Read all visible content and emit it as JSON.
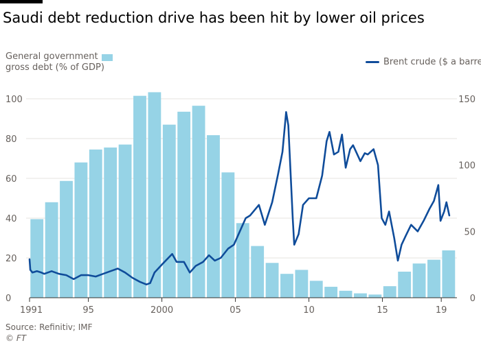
{
  "header": {
    "title": "Saudi debt reduction drive has been hit by lower oil prices"
  },
  "legend": {
    "debt_label_line1": "General government",
    "debt_label_line2": "gross debt (% of GDP)",
    "oil_label": "Brent crude ($ a barrel)"
  },
  "footer": {
    "source": "Source: Refinitiv; IMF",
    "credit": "© FT"
  },
  "colors": {
    "bars": "#96d3e6",
    "line": "#0f4c9a",
    "axis": "#66605c",
    "grid": "#e6e3df"
  },
  "chart_data": {
    "type": "bar+line",
    "title": "Saudi debt reduction drive has been hit by lower oil prices",
    "x_tick_labels": [
      "1991",
      "95",
      "2000",
      "05",
      "10",
      "15",
      "19"
    ],
    "x_tick_years": [
      1991,
      1995,
      2000,
      2005,
      2010,
      2015,
      2019
    ],
    "x_range": [
      1991,
      2019.6
    ],
    "left_axis": {
      "ticks": [
        0,
        20,
        40,
        60,
        80,
        100
      ],
      "ylim": [
        0,
        110
      ]
    },
    "right_axis": {
      "ticks": [
        0,
        50,
        100,
        150
      ],
      "ylim": [
        0,
        165
      ]
    },
    "series": [
      {
        "name": "General government gross debt (% of GDP)",
        "type": "bar",
        "axis": "left",
        "x": [
          1991,
          1992,
          1993,
          1994,
          1995,
          1996,
          1997,
          1998,
          1999,
          2000,
          2001,
          2002,
          2003,
          2004,
          2005,
          2006,
          2007,
          2008,
          2009,
          2010,
          2011,
          2012,
          2013,
          2014,
          2015,
          2016,
          2017,
          2018,
          2019
        ],
        "values": [
          39.5,
          48,
          58.7,
          68,
          74.5,
          75.5,
          77,
          101.5,
          103.3,
          87,
          93.5,
          96.5,
          81.7,
          63,
          37.5,
          26,
          17.5,
          12,
          14,
          8.5,
          5.5,
          3.5,
          2.2,
          1.6,
          5.8,
          13.1,
          17.2,
          19.1,
          23.8
        ]
      },
      {
        "name": "Brent crude ($ a barrel)",
        "type": "line",
        "axis": "right",
        "points": [
          [
            1991.0,
            29
          ],
          [
            1991.05,
            21
          ],
          [
            1991.2,
            19
          ],
          [
            1991.5,
            20
          ],
          [
            1991.8,
            19
          ],
          [
            1992.0,
            18
          ],
          [
            1992.5,
            20
          ],
          [
            1993.0,
            18
          ],
          [
            1993.5,
            17
          ],
          [
            1994.0,
            14
          ],
          [
            1994.5,
            17
          ],
          [
            1995.0,
            17
          ],
          [
            1995.5,
            16
          ],
          [
            1996.0,
            18
          ],
          [
            1996.5,
            20
          ],
          [
            1997.0,
            22
          ],
          [
            1997.5,
            19
          ],
          [
            1998.0,
            15
          ],
          [
            1998.5,
            12
          ],
          [
            1998.95,
            10
          ],
          [
            1999.2,
            11
          ],
          [
            1999.5,
            19
          ],
          [
            2000.0,
            25
          ],
          [
            2000.7,
            33
          ],
          [
            2001.0,
            27
          ],
          [
            2001.5,
            27
          ],
          [
            2001.9,
            19
          ],
          [
            2002.3,
            24
          ],
          [
            2002.8,
            27
          ],
          [
            2003.2,
            32
          ],
          [
            2003.6,
            28
          ],
          [
            2004.0,
            30
          ],
          [
            2004.5,
            37
          ],
          [
            2004.9,
            40
          ],
          [
            2005.3,
            50
          ],
          [
            2005.7,
            60
          ],
          [
            2006.0,
            62
          ],
          [
            2006.6,
            70
          ],
          [
            2007.0,
            55
          ],
          [
            2007.5,
            72
          ],
          [
            2007.9,
            93
          ],
          [
            2008.2,
            110
          ],
          [
            2008.45,
            140
          ],
          [
            2008.6,
            130
          ],
          [
            2008.9,
            60
          ],
          [
            2009.0,
            40
          ],
          [
            2009.3,
            48
          ],
          [
            2009.6,
            70
          ],
          [
            2010.0,
            75
          ],
          [
            2010.5,
            75
          ],
          [
            2010.9,
            92
          ],
          [
            2011.2,
            118
          ],
          [
            2011.4,
            125
          ],
          [
            2011.7,
            108
          ],
          [
            2012.0,
            110
          ],
          [
            2012.25,
            123
          ],
          [
            2012.5,
            98
          ],
          [
            2012.8,
            112
          ],
          [
            2013.0,
            115
          ],
          [
            2013.5,
            103
          ],
          [
            2013.8,
            109
          ],
          [
            2014.0,
            108
          ],
          [
            2014.4,
            112
          ],
          [
            2014.7,
            100
          ],
          [
            2014.95,
            60
          ],
          [
            2015.2,
            55
          ],
          [
            2015.45,
            65
          ],
          [
            2015.8,
            45
          ],
          [
            2016.05,
            28
          ],
          [
            2016.3,
            40
          ],
          [
            2016.6,
            47
          ],
          [
            2016.95,
            55
          ],
          [
            2017.4,
            50
          ],
          [
            2017.8,
            58
          ],
          [
            2018.2,
            67
          ],
          [
            2018.5,
            73
          ],
          [
            2018.8,
            85
          ],
          [
            2018.95,
            58
          ],
          [
            2019.2,
            65
          ],
          [
            2019.35,
            72
          ],
          [
            2019.55,
            62
          ]
        ]
      }
    ],
    "grid": "horizontal",
    "legend_position": "top"
  }
}
